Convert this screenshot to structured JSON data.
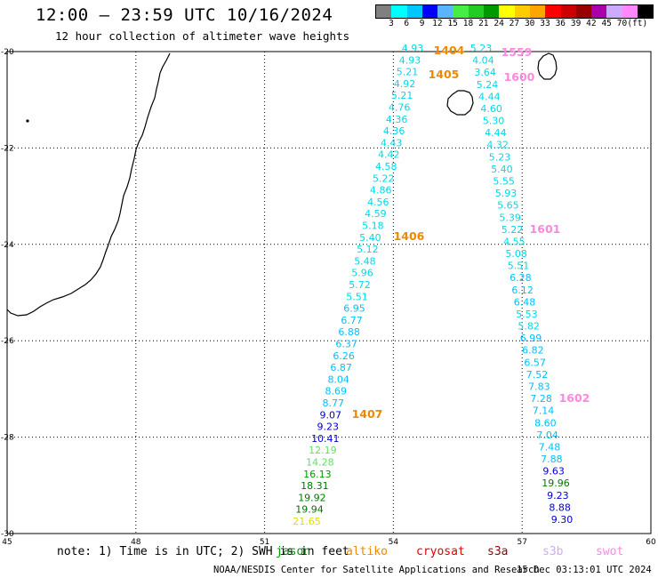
{
  "header": {
    "title": "12:00 – 23:59 UTC 10/16/2024",
    "subtitle": "12 hour collection of altimeter wave heights"
  },
  "legend": {
    "colors": [
      "#808080",
      "#00ffff",
      "#00c8ff",
      "#0000ff",
      "#5ab4ff",
      "#44ee44",
      "#22cc22",
      "#009900",
      "#ffff00",
      "#ffcc00",
      "#ffa500",
      "#ff0000",
      "#cc0000",
      "#990000",
      "#aa00aa",
      "#ccaaff",
      "#ff88ff",
      "#000000"
    ],
    "labels": [
      "3",
      "6",
      "9",
      "12",
      "15",
      "18",
      "21",
      "24",
      "27",
      "30",
      "33",
      "36",
      "39",
      "42",
      "45",
      "70",
      "(ft)"
    ]
  },
  "axes": {
    "lon_labels": [
      "45",
      "48",
      "51",
      "54",
      "57",
      "60"
    ],
    "lat_labels": [
      "-20",
      "-22",
      "-24",
      "-26",
      "-28",
      "-30"
    ]
  },
  "tracks": [
    {
      "side": "west",
      "points": [
        {
          "v": "4.93",
          "c": "#00d8e8"
        },
        {
          "v": "4.93",
          "c": "#00d8e8"
        },
        {
          "v": "5.21",
          "c": "#00d8e8"
        },
        {
          "v": "4.92",
          "c": "#00d8e8"
        },
        {
          "v": "5.21",
          "c": "#00d8e8"
        },
        {
          "v": "4.76",
          "c": "#00d8e8"
        },
        {
          "v": "4.36",
          "c": "#00d8e8"
        },
        {
          "v": "4.36",
          "c": "#00d8e8"
        },
        {
          "v": "4.43",
          "c": "#00d8e8"
        },
        {
          "v": "4.42",
          "c": "#00d8e8"
        },
        {
          "v": "4.58",
          "c": "#00d8e8"
        },
        {
          "v": "5.22",
          "c": "#00d8e8"
        },
        {
          "v": "4.86",
          "c": "#00d8e8"
        },
        {
          "v": "4.56",
          "c": "#00d8e8"
        },
        {
          "v": "4.59",
          "c": "#00d8e8"
        },
        {
          "v": "5.18",
          "c": "#00d8e8"
        },
        {
          "v": "5.40",
          "c": "#00d8e8"
        },
        {
          "v": "5.12",
          "c": "#00d8e8"
        },
        {
          "v": "5.48",
          "c": "#00d8e8"
        },
        {
          "v": "5.96",
          "c": "#00d8e8"
        },
        {
          "v": "5.72",
          "c": "#00d8e8"
        },
        {
          "v": "5.51",
          "c": "#00d8e8"
        },
        {
          "v": "6.95",
          "c": "#00bfff"
        },
        {
          "v": "6.77",
          "c": "#00bfff"
        },
        {
          "v": "6.88",
          "c": "#00bfff"
        },
        {
          "v": "6.37",
          "c": "#00bfff"
        },
        {
          "v": "6.26",
          "c": "#00bfff"
        },
        {
          "v": "6.87",
          "c": "#00bfff"
        },
        {
          "v": "8.04",
          "c": "#00bfff"
        },
        {
          "v": "8.69",
          "c": "#00bfff"
        },
        {
          "v": "8.77",
          "c": "#00bfff"
        },
        {
          "v": "9.07",
          "c": "#0000cc"
        },
        {
          "v": "9.23",
          "c": "#0000cc"
        },
        {
          "v": "10.41",
          "c": "#0000cc"
        },
        {
          "v": "12.19",
          "c": "#66dd66"
        },
        {
          "v": "14.28",
          "c": "#66dd66"
        },
        {
          "v": "16.13",
          "c": "#009900"
        },
        {
          "v": "18.31",
          "c": "#007700"
        },
        {
          "v": "19.92",
          "c": "#007700"
        },
        {
          "v": "19.94",
          "c": "#007700"
        },
        {
          "v": "21.65",
          "c": "#dddd00"
        }
      ]
    },
    {
      "side": "east",
      "points": [
        {
          "v": "5.23",
          "c": "#00d8e8"
        },
        {
          "v": "4.04",
          "c": "#00d8e8"
        },
        {
          "v": "3.64",
          "c": "#00d8e8"
        },
        {
          "v": "5.24",
          "c": "#00d8e8"
        },
        {
          "v": "4.44",
          "c": "#00d8e8"
        },
        {
          "v": "4.60",
          "c": "#00d8e8"
        },
        {
          "v": "5.30",
          "c": "#00d8e8"
        },
        {
          "v": "4.44",
          "c": "#00d8e8"
        },
        {
          "v": "4.32",
          "c": "#00d8e8"
        },
        {
          "v": "5.23",
          "c": "#00d8e8"
        },
        {
          "v": "5.40",
          "c": "#00d8e8"
        },
        {
          "v": "5.55",
          "c": "#00d8e8"
        },
        {
          "v": "5.93",
          "c": "#00d8e8"
        },
        {
          "v": "5.65",
          "c": "#00d8e8"
        },
        {
          "v": "5.39",
          "c": "#00d8e8"
        },
        {
          "v": "5.22",
          "c": "#00d8e8"
        },
        {
          "v": "4.55",
          "c": "#00d8e8"
        },
        {
          "v": "5.08",
          "c": "#00d8e8"
        },
        {
          "v": "5.51",
          "c": "#00d8e8"
        },
        {
          "v": "6.28",
          "c": "#00bfff"
        },
        {
          "v": "6.12",
          "c": "#00bfff"
        },
        {
          "v": "6.48",
          "c": "#00bfff"
        },
        {
          "v": "5.53",
          "c": "#00d8e8"
        },
        {
          "v": "5.82",
          "c": "#00d8e8"
        },
        {
          "v": "6.99",
          "c": "#00bfff"
        },
        {
          "v": "6.82",
          "c": "#00bfff"
        },
        {
          "v": "6.57",
          "c": "#00bfff"
        },
        {
          "v": "7.52",
          "c": "#00bfff"
        },
        {
          "v": "7.83",
          "c": "#00bfff"
        },
        {
          "v": "7.28",
          "c": "#00bfff"
        },
        {
          "v": "7.14",
          "c": "#00bfff"
        },
        {
          "v": "8.60",
          "c": "#00bfff"
        },
        {
          "v": "7.04",
          "c": "#00bfff"
        },
        {
          "v": "7.48",
          "c": "#00bfff"
        },
        {
          "v": "7.88",
          "c": "#00bfff"
        },
        {
          "v": "9.63",
          "c": "#0000cc"
        },
        {
          "v": "19.96",
          "c": "#007700"
        },
        {
          "v": "9.23",
          "c": "#0000cc"
        },
        {
          "v": "8.88",
          "c": "#0000cc"
        },
        {
          "v": "9.30",
          "c": "#0000cc"
        }
      ]
    }
  ],
  "time_marks": [
    {
      "label": "1404",
      "color": "#ee8800"
    },
    {
      "label": "1405",
      "color": "#ee8800"
    },
    {
      "label": "1406",
      "color": "#ee8800"
    },
    {
      "label": "1407",
      "color": "#ee8800"
    },
    {
      "label": "1559",
      "color": "#ff88dd"
    },
    {
      "label": "1600",
      "color": "#ff88dd"
    },
    {
      "label": "1601",
      "color": "#ff88dd"
    },
    {
      "label": "1602",
      "color": "#ff88dd"
    }
  ],
  "note": "note: 1) Time is in UTC; 2) SWH is in feet",
  "satellites": [
    {
      "name": "jason",
      "color": "#009900"
    },
    {
      "name": "altiko",
      "color": "#ee8800"
    },
    {
      "name": "cryosat",
      "color": "#dd0000"
    },
    {
      "name": "s3a",
      "color": "#990000"
    },
    {
      "name": "s3b",
      "color": "#ccaaff"
    },
    {
      "name": "swot",
      "color": "#ff88dd"
    }
  ],
  "footer": {
    "credit": "NOAA/NESDIS Center for Satellite Applications and Research",
    "timestamp": "15 Dec 03:13:01 UTC 2024"
  }
}
